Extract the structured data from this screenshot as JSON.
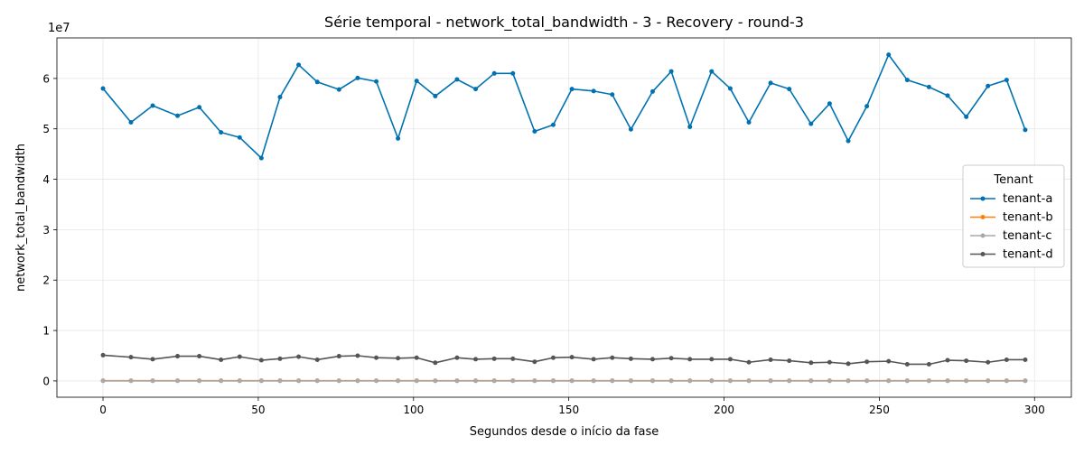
{
  "chart_data": {
    "type": "line",
    "title": "Série temporal - network_total_bandwidth - 3 - Recovery - round-3",
    "xlabel": "Segundos desde o início da fase",
    "ylabel": "network_total_bandwidth",
    "y_offset_label": "1e7",
    "y_scale_factor": 10000000,
    "xlim": [
      -14.85,
      311.85
    ],
    "ylim": [
      -3240000,
      68040000
    ],
    "x_ticks": [
      0,
      50,
      100,
      150,
      200,
      250,
      300
    ],
    "x_tick_labels": [
      "0",
      "50",
      "100",
      "150",
      "200",
      "250",
      "300"
    ],
    "y_ticks": [
      0,
      10000000,
      20000000,
      30000000,
      40000000,
      50000000,
      60000000
    ],
    "y_tick_labels": [
      "0",
      "1",
      "2",
      "3",
      "4",
      "5",
      "6"
    ],
    "grid": true,
    "legend": {
      "title": "Tenant",
      "placement": "center-right"
    },
    "x": [
      0,
      9,
      16,
      24,
      31,
      38,
      44,
      51,
      57,
      63,
      69,
      76,
      82,
      88,
      95,
      101,
      107,
      114,
      120,
      126,
      132,
      139,
      145,
      151,
      158,
      164,
      170,
      177,
      183,
      189,
      196,
      202,
      208,
      215,
      221,
      228,
      234,
      240,
      246,
      253,
      259,
      266,
      272,
      278,
      285,
      291,
      297
    ],
    "series": [
      {
        "name": "tenant-a",
        "color": "#0072b2",
        "values": [
          58000000,
          51300000,
          54600000,
          52600000,
          54300000,
          49300000,
          48300000,
          44200000,
          56300000,
          62700000,
          59300000,
          57800000,
          60100000,
          59400000,
          48100000,
          59500000,
          56500000,
          59800000,
          57900000,
          61000000,
          61000000,
          49500000,
          50800000,
          57900000,
          57500000,
          56800000,
          49900000,
          57400000,
          61400000,
          50400000,
          61400000,
          58000000,
          51300000,
          59100000,
          57900000,
          51000000,
          55000000,
          47600000,
          54500000,
          64700000,
          59700000,
          58300000,
          56600000,
          52400000,
          58500000,
          59700000,
          49800000
        ]
      },
      {
        "name": "tenant-b",
        "color": "#ff7f0e",
        "values": [
          50000,
          50000,
          50000,
          50000,
          50000,
          50000,
          50000,
          50000,
          50000,
          50000,
          50000,
          50000,
          50000,
          50000,
          50000,
          50000,
          50000,
          50000,
          50000,
          50000,
          50000,
          50000,
          50000,
          50000,
          50000,
          50000,
          50000,
          50000,
          50000,
          50000,
          50000,
          50000,
          50000,
          50000,
          50000,
          50000,
          50000,
          50000,
          50000,
          50000,
          50000,
          50000,
          50000,
          50000,
          50000,
          50000,
          50000
        ]
      },
      {
        "name": "tenant-c",
        "color": "#a9a9a9",
        "values": [
          0,
          0,
          0,
          0,
          0,
          0,
          0,
          0,
          0,
          0,
          0,
          0,
          0,
          0,
          0,
          0,
          0,
          0,
          0,
          0,
          0,
          0,
          0,
          0,
          0,
          0,
          0,
          0,
          0,
          0,
          0,
          0,
          0,
          0,
          0,
          0,
          0,
          0,
          0,
          0,
          0,
          0,
          0,
          0,
          0,
          0,
          0
        ]
      },
      {
        "name": "tenant-d",
        "color": "#555555",
        "values": [
          5100000,
          4700000,
          4300000,
          4900000,
          4900000,
          4200000,
          4800000,
          4100000,
          4400000,
          4800000,
          4200000,
          4900000,
          5000000,
          4600000,
          4500000,
          4600000,
          3600000,
          4600000,
          4300000,
          4400000,
          4400000,
          3800000,
          4600000,
          4700000,
          4300000,
          4600000,
          4400000,
          4300000,
          4500000,
          4300000,
          4300000,
          4300000,
          3700000,
          4200000,
          4000000,
          3600000,
          3700000,
          3400000,
          3800000,
          3900000,
          3300000,
          3300000,
          4100000,
          4000000,
          3700000,
          4200000,
          4200000
        ]
      }
    ]
  }
}
